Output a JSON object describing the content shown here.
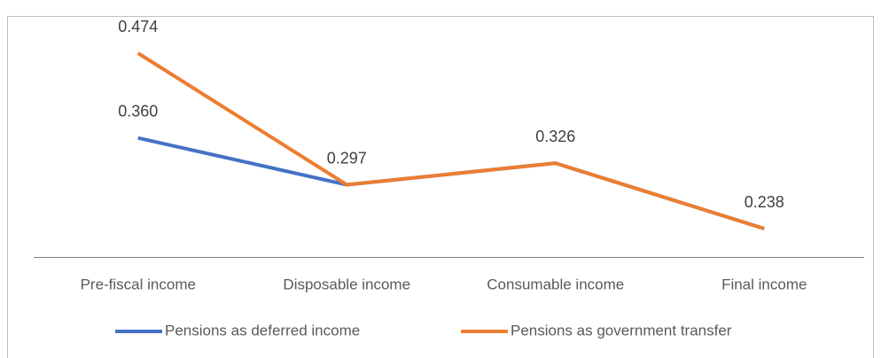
{
  "chart_data": {
    "type": "line",
    "categories": [
      "Pre-fiscal income",
      "Disposable income",
      "Consumable income",
      "Final income"
    ],
    "series": [
      {
        "name": "Pensions as deferred income",
        "color": "#4472c4",
        "values": [
          0.36,
          0.297,
          0.326,
          0.238
        ],
        "value_labels": [
          "0.360",
          null,
          null,
          null
        ]
      },
      {
        "name": "Pensions as government transfer",
        "color": "#ed7d31",
        "values": [
          0.474,
          0.297,
          0.326,
          0.238
        ],
        "value_labels": [
          "0.474",
          "0.297",
          "0.326",
          "0.238"
        ]
      }
    ]
  }
}
